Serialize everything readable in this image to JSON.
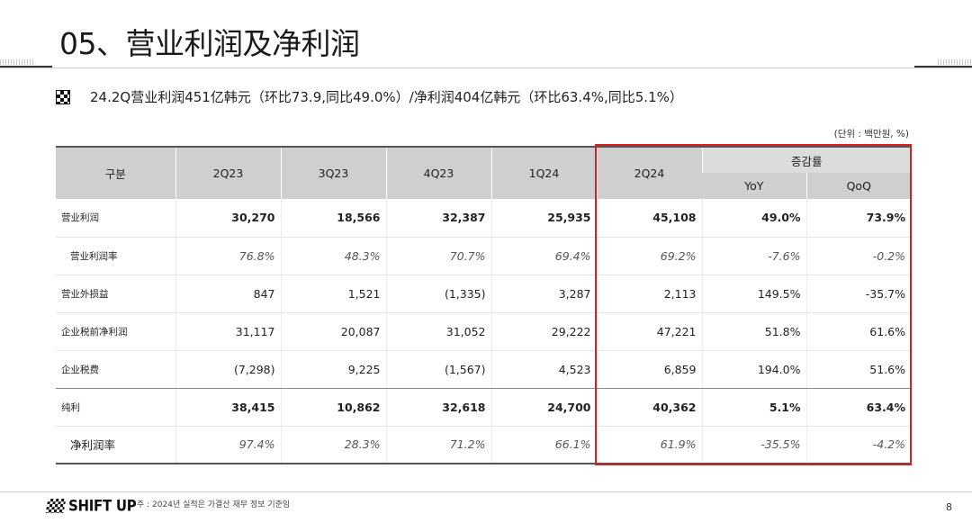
{
  "header": {
    "title": "05、营业利润及净利润"
  },
  "summary": {
    "text": "24.2Q营业利润451亿韩元（环比73.9,同比49.0%）/净利润404亿韩元（环比63.4%,同比5.1%）"
  },
  "unit_note": "(단위 : 백만원, %)",
  "table": {
    "headers": {
      "category": "구분",
      "quarters": [
        "2Q23",
        "3Q23",
        "4Q23",
        "1Q24",
        "2Q24"
      ],
      "change": "증감률",
      "yoy": "YoY",
      "qoq": "QoQ"
    },
    "rows": [
      {
        "label": "营业利润",
        "values": [
          "30,270",
          "18,566",
          "32,387",
          "25,935",
          "45,108",
          "49.0%",
          "73.9%"
        ]
      },
      {
        "label": "营业利润率",
        "values": [
          "76.8%",
          "48.3%",
          "70.7%",
          "69.4%",
          "69.2%",
          "-7.6%",
          "-0.2%"
        ]
      },
      {
        "label": "营业外损益",
        "values": [
          "847",
          "1,521",
          "(1,335)",
          "3,287",
          "2,113",
          "149.5%",
          "-35.7%"
        ]
      },
      {
        "label": "企业税前净利润",
        "values": [
          "31,117",
          "20,087",
          "31,052",
          "29,222",
          "47,221",
          "51.8%",
          "61.6%"
        ]
      },
      {
        "label": "企业税费",
        "values": [
          "(7,298)",
          "9,225",
          "(1,567)",
          "4,523",
          "6,859",
          "194.0%",
          "51.6%"
        ]
      },
      {
        "label": "纯利",
        "values": [
          "38,415",
          "10,862",
          "32,618",
          "24,700",
          "40,362",
          "5.1%",
          "63.4%"
        ]
      },
      {
        "label": "净利润率",
        "values": [
          "97.4%",
          "28.3%",
          "71.2%",
          "66.1%",
          "61.9%",
          "-35.5%",
          "-4.2%"
        ]
      }
    ]
  },
  "footer": {
    "logo": "SHIFT UP",
    "note": "주 : 2024년 실적은 가결산 재무 정보 기준임",
    "page": "8"
  },
  "colors": {
    "highlight_border": "#d42020",
    "header_bg": "#cfcfcf"
  }
}
